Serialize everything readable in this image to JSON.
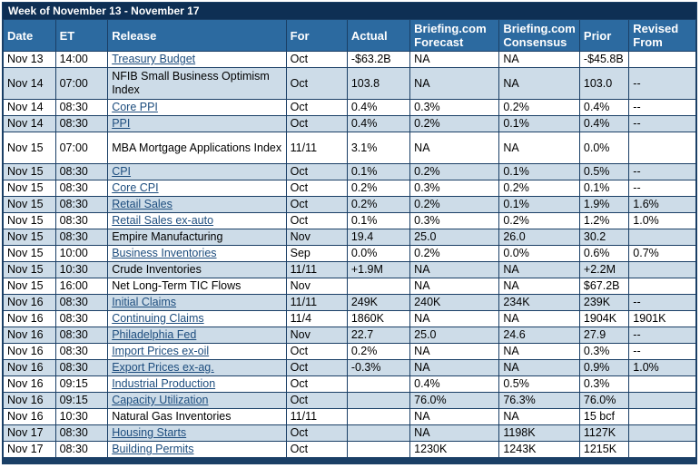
{
  "title": "Week of November 13 - November 17",
  "columns": [
    "Date",
    "ET",
    "Release",
    "For",
    "Actual",
    "Briefing.com Forecast",
    "Briefing.com Consensus",
    "Prior",
    "Revised From"
  ],
  "rows": [
    {
      "date": "Nov 13",
      "et": "14:00",
      "release": "Treasury Budget",
      "link": true,
      "for": "Oct",
      "actual": "-$63.2B",
      "forecast": "NA",
      "consensus": "NA",
      "prior": "-$45.8B",
      "revised": ""
    },
    {
      "date": "Nov 14",
      "et": "07:00",
      "release": "NFIB Small Business Optimism Index",
      "link": false,
      "for": "Oct",
      "actual": "103.8",
      "forecast": "NA",
      "consensus": "NA",
      "prior": "103.0",
      "revised": "--"
    },
    {
      "date": "Nov 14",
      "et": "08:30",
      "release": "Core PPI",
      "link": true,
      "for": "Oct",
      "actual": "0.4%",
      "forecast": "0.3%",
      "consensus": "0.2%",
      "prior": "0.4%",
      "revised": "--"
    },
    {
      "date": "Nov 14",
      "et": "08:30",
      "release": "PPI",
      "link": true,
      "for": "Oct",
      "actual": "0.4%",
      "forecast": "0.2%",
      "consensus": "0.1%",
      "prior": "0.4%",
      "revised": "--"
    },
    {
      "date": "Nov 15",
      "et": "07:00",
      "release": "MBA Mortgage Applications Index",
      "link": false,
      "for": "11/11",
      "actual": "3.1%",
      "forecast": "NA",
      "consensus": "NA",
      "prior": "0.0%",
      "revised": ""
    },
    {
      "date": "Nov 15",
      "et": "08:30",
      "release": "CPI",
      "link": true,
      "for": "Oct",
      "actual": "0.1%",
      "forecast": "0.2%",
      "consensus": "0.1%",
      "prior": "0.5%",
      "revised": "--"
    },
    {
      "date": "Nov 15",
      "et": "08:30",
      "release": "Core CPI",
      "link": true,
      "for": "Oct",
      "actual": "0.2%",
      "forecast": "0.3%",
      "consensus": "0.2%",
      "prior": "0.1%",
      "revised": "--"
    },
    {
      "date": "Nov 15",
      "et": "08:30",
      "release": "Retail Sales",
      "link": true,
      "for": "Oct",
      "actual": "0.2%",
      "forecast": "0.2%",
      "consensus": "0.1%",
      "prior": "1.9%",
      "revised": "1.6%"
    },
    {
      "date": "Nov 15",
      "et": "08:30",
      "release": "Retail Sales ex-auto",
      "link": true,
      "for": "Oct",
      "actual": "0.1%",
      "forecast": "0.3%",
      "consensus": "0.2%",
      "prior": "1.2%",
      "revised": "1.0%"
    },
    {
      "date": "Nov 15",
      "et": "08:30",
      "release": "Empire Manufacturing",
      "link": false,
      "for": "Nov",
      "actual": "19.4",
      "forecast": "25.0",
      "consensus": "26.0",
      "prior": "30.2",
      "revised": ""
    },
    {
      "date": "Nov 15",
      "et": "10:00",
      "release": "Business Inventories",
      "link": true,
      "for": "Sep",
      "actual": "0.0%",
      "forecast": "0.2%",
      "consensus": "0.0%",
      "prior": "0.6%",
      "revised": "0.7%"
    },
    {
      "date": "Nov 15",
      "et": "10:30",
      "release": "Crude Inventories",
      "link": false,
      "for": "11/11",
      "actual": "+1.9M",
      "forecast": "NA",
      "consensus": "NA",
      "prior": "+2.2M",
      "revised": ""
    },
    {
      "date": "Nov 15",
      "et": "16:00",
      "release": "Net Long-Term TIC Flows",
      "link": false,
      "for": "Nov",
      "actual": "",
      "forecast": "NA",
      "consensus": "NA",
      "prior": "$67.2B",
      "revised": ""
    },
    {
      "date": "Nov 16",
      "et": "08:30",
      "release": "Initial Claims",
      "link": true,
      "for": "11/11",
      "actual": "249K",
      "forecast": "240K",
      "consensus": "234K",
      "prior": "239K",
      "revised": "--"
    },
    {
      "date": "Nov 16",
      "et": "08:30",
      "release": "Continuing Claims",
      "link": true,
      "for": "11/4",
      "actual": "1860K",
      "forecast": "NA",
      "consensus": "NA",
      "prior": "1904K",
      "revised": "1901K"
    },
    {
      "date": "Nov 16",
      "et": "08:30",
      "release": "Philadelphia Fed",
      "link": true,
      "for": "Nov",
      "actual": "22.7",
      "forecast": "25.0",
      "consensus": "24.6",
      "prior": "27.9",
      "revised": "--"
    },
    {
      "date": "Nov 16",
      "et": "08:30",
      "release": "Import Prices ex-oil",
      "link": true,
      "for": "Oct",
      "actual": "0.2%",
      "forecast": "NA",
      "consensus": "NA",
      "prior": "0.3%",
      "revised": "--"
    },
    {
      "date": "Nov 16",
      "et": "08:30",
      "release": "Export Prices ex-ag.",
      "link": true,
      "for": "Oct",
      "actual": "-0.3%",
      "forecast": "NA",
      "consensus": "NA",
      "prior": "0.9%",
      "revised": "1.0%"
    },
    {
      "date": "Nov 16",
      "et": "09:15",
      "release": "Industrial Production",
      "link": true,
      "for": "Oct",
      "actual": "",
      "forecast": "0.4%",
      "consensus": "0.5%",
      "prior": "0.3%",
      "revised": ""
    },
    {
      "date": "Nov 16",
      "et": "09:15",
      "release": "Capacity Utilization",
      "link": true,
      "for": "Oct",
      "actual": "",
      "forecast": "76.0%",
      "consensus": "76.3%",
      "prior": "76.0%",
      "revised": ""
    },
    {
      "date": "Nov 16",
      "et": "10:30",
      "release": "Natural Gas Inventories",
      "link": false,
      "for": "11/11",
      "actual": "",
      "forecast": "NA",
      "consensus": "NA",
      "prior": "15 bcf",
      "revised": ""
    },
    {
      "date": "Nov 17",
      "et": "08:30",
      "release": "Housing Starts",
      "link": true,
      "for": "Oct",
      "actual": "",
      "forecast": "NA",
      "consensus": "1198K",
      "prior": "1127K",
      "revised": ""
    },
    {
      "date": "Nov 17",
      "et": "08:30",
      "release": "Building Permits",
      "link": true,
      "for": "Oct",
      "actual": "",
      "forecast": "1230K",
      "consensus": "1243K",
      "prior": "1215K",
      "revised": ""
    }
  ]
}
